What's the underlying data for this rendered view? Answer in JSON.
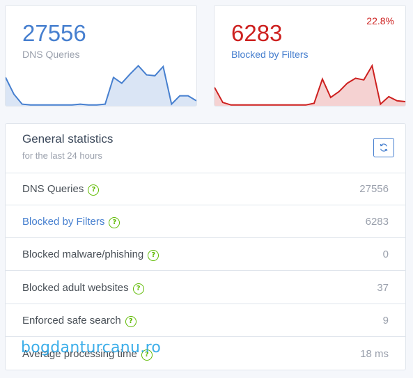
{
  "colors": {
    "blue": "#467fcf",
    "red": "#cd201f",
    "green": "#5eba00",
    "muted": "#9aa0ac",
    "text": "#495057"
  },
  "queries_card": {
    "value": "27556",
    "label": "DNS Queries",
    "sparkline": [
      34,
      14,
      2,
      1,
      1,
      1,
      1,
      1,
      1,
      2,
      1,
      1,
      2,
      34,
      27,
      38,
      48,
      37,
      36,
      47,
      2,
      12,
      12,
      6
    ]
  },
  "blocked_card": {
    "value": "6283",
    "label": "Blocked by Filters",
    "percent": "22.8%",
    "sparkline": [
      22,
      4,
      1,
      1,
      1,
      1,
      1,
      1,
      1,
      1,
      1,
      1,
      3,
      32,
      10,
      17,
      27,
      33,
      31,
      48,
      2,
      11,
      6,
      5
    ]
  },
  "general": {
    "title": "General statistics",
    "subtitle": "for the last 24 hours",
    "help_glyph": "?",
    "rows": [
      {
        "label": "DNS Queries",
        "value": "27556"
      },
      {
        "label": "Blocked by Filters",
        "value": "6283"
      },
      {
        "label": "Blocked malware/phishing",
        "value": "0"
      },
      {
        "label": "Blocked adult websites",
        "value": "37"
      },
      {
        "label": "Enforced safe search",
        "value": "9"
      },
      {
        "label": "Average processing time",
        "value": "18 ms"
      }
    ]
  },
  "watermark": "bogdanturcanu.ro"
}
